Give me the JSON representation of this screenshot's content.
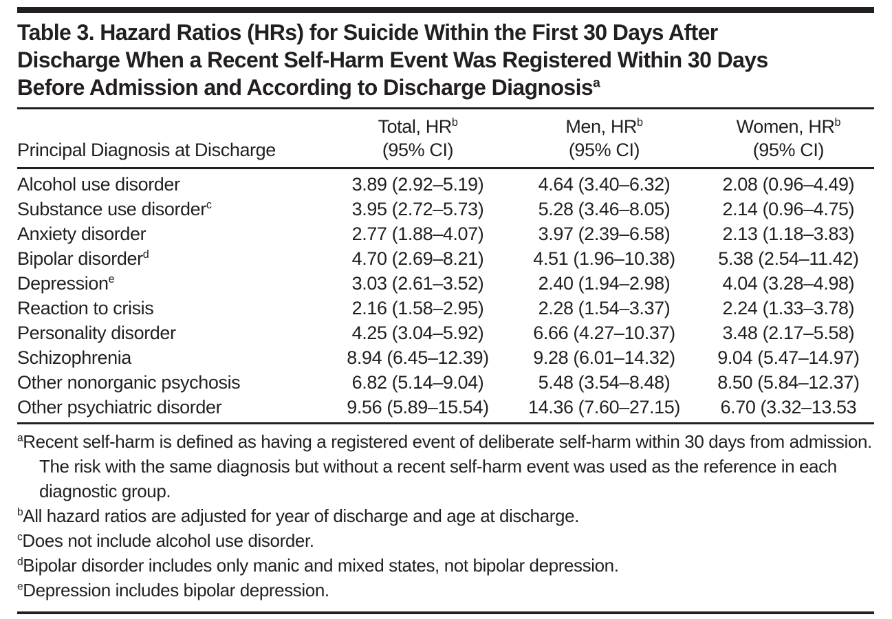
{
  "document": {
    "text_color": "#231f20",
    "title_lines": [
      "Table 3. Hazard Ratios (HRs) for Suicide Within the First 30 Days After",
      "Discharge When a Recent Self-Harm Event Was Registered Within 30 Days",
      "Before Admission and According to Discharge Diagnosis"
    ],
    "title_superscript": "a"
  },
  "table": {
    "column_headers": {
      "diagnosis": "Principal Diagnosis at Discharge",
      "total": {
        "line1": "Total, HR",
        "sup": "b",
        "line2": "(95% CI)"
      },
      "men": {
        "line1": "Men, HR",
        "sup": "b",
        "line2": "(95% CI)"
      },
      "women": {
        "line1": "Women, HR",
        "sup": "b",
        "line2": "(95% CI)"
      }
    },
    "rows": [
      {
        "diagnosis": "Alcohol use disorder",
        "sup": "",
        "total": "3.89 (2.92–5.19)",
        "men": "4.64 (3.40–6.32)",
        "women": "2.08 (0.96–4.49)"
      },
      {
        "diagnosis": "Substance use disorder",
        "sup": "c",
        "total": "3.95 (2.72–5.73)",
        "men": "5.28 (3.46–8.05)",
        "women": "2.14 (0.96–4.75)"
      },
      {
        "diagnosis": "Anxiety disorder",
        "sup": "",
        "total": "2.77 (1.88–4.07)",
        "men": "3.97 (2.39–6.58)",
        "women": "2.13 (1.18–3.83)"
      },
      {
        "diagnosis": "Bipolar disorder",
        "sup": "d",
        "total": "4.70 (2.69–8.21)",
        "men": "4.51 (1.96–10.38)",
        "women": "5.38 (2.54–11.42)"
      },
      {
        "diagnosis": "Depression",
        "sup": "e",
        "total": "3.03 (2.61–3.52)",
        "men": "2.40 (1.94–2.98)",
        "women": "4.04 (3.28–4.98)"
      },
      {
        "diagnosis": "Reaction to crisis",
        "sup": "",
        "total": "2.16 (1.58–2.95)",
        "men": "2.28 (1.54–3.37)",
        "women": "2.24 (1.33–3.78)"
      },
      {
        "diagnosis": "Personality disorder",
        "sup": "",
        "total": "4.25 (3.04–5.92)",
        "men": "6.66 (4.27–10.37)",
        "women": "3.48 (2.17–5.58)"
      },
      {
        "diagnosis": "Schizophrenia",
        "sup": "",
        "total": "8.94 (6.45–12.39)",
        "men": "9.28 (6.01–14.32)",
        "women": "9.04 (5.47–14.97)"
      },
      {
        "diagnosis": "Other nonorganic psychosis",
        "sup": "",
        "total": "6.82 (5.14–9.04)",
        "men": "5.48 (3.54–8.48)",
        "women": "8.50 (5.84–12.37)"
      },
      {
        "diagnosis": "Other psychiatric disorder",
        "sup": "",
        "total": "9.56 (5.89–15.54)",
        "men": "14.36 (7.60–27.15)",
        "women": "6.70 (3.32–13.53"
      }
    ],
    "footnotes": [
      {
        "marker": "a",
        "text": "Recent self-harm is defined as having a registered event of deliberate self-harm within 30 days from admission. The risk with the same diagnosis but without a recent self-harm event was used as the reference in each diagnostic group."
      },
      {
        "marker": "b",
        "text": "All hazard ratios are adjusted for year of discharge and age at discharge."
      },
      {
        "marker": "c",
        "text": "Does not include alcohol use disorder."
      },
      {
        "marker": "d",
        "text": "Bipolar disorder includes only manic and mixed states, not bipolar depression."
      },
      {
        "marker": "e",
        "text": "Depression includes bipolar depression."
      }
    ]
  }
}
